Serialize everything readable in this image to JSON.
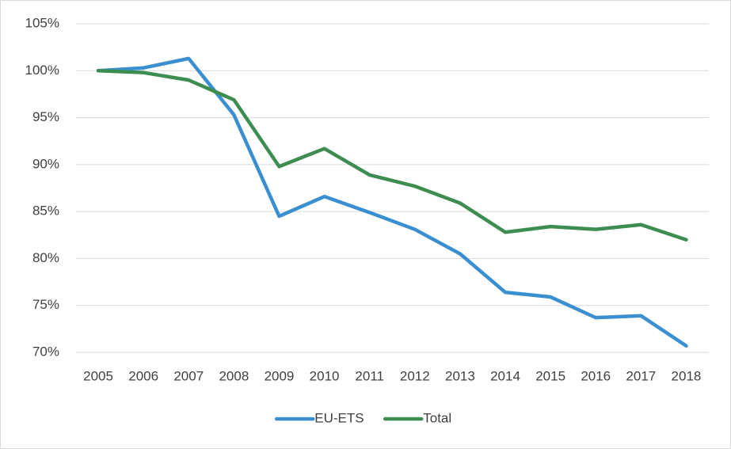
{
  "chart_data": {
    "type": "line",
    "categories": [
      "2005",
      "2006",
      "2007",
      "2008",
      "2009",
      "2010",
      "2011",
      "2012",
      "2013",
      "2014",
      "2015",
      "2016",
      "2017",
      "2018"
    ],
    "series": [
      {
        "name": "EU-ETS",
        "color": "#3a8fd0",
        "values": [
          100,
          100.3,
          101.3,
          95.3,
          84.5,
          86.6,
          84.9,
          83.1,
          80.5,
          76.4,
          75.9,
          73.7,
          73.9,
          70.7
        ]
      },
      {
        "name": "Total",
        "color": "#3d8c50",
        "values": [
          100,
          99.8,
          99.0,
          96.9,
          89.8,
          91.7,
          88.9,
          87.7,
          85.9,
          82.8,
          83.4,
          83.1,
          83.6,
          82.0
        ]
      }
    ],
    "ylim": [
      70,
      105
    ],
    "yticks": [
      {
        "value": 70,
        "label": "70%"
      },
      {
        "value": 75,
        "label": "75%"
      },
      {
        "value": 80,
        "label": "80%"
      },
      {
        "value": 85,
        "label": "85%"
      },
      {
        "value": 90,
        "label": "90%"
      },
      {
        "value": 95,
        "label": "95%"
      },
      {
        "value": 100,
        "label": "100%"
      },
      {
        "value": 105,
        "label": "105%"
      }
    ],
    "grid": true,
    "legend": "bottom"
  }
}
